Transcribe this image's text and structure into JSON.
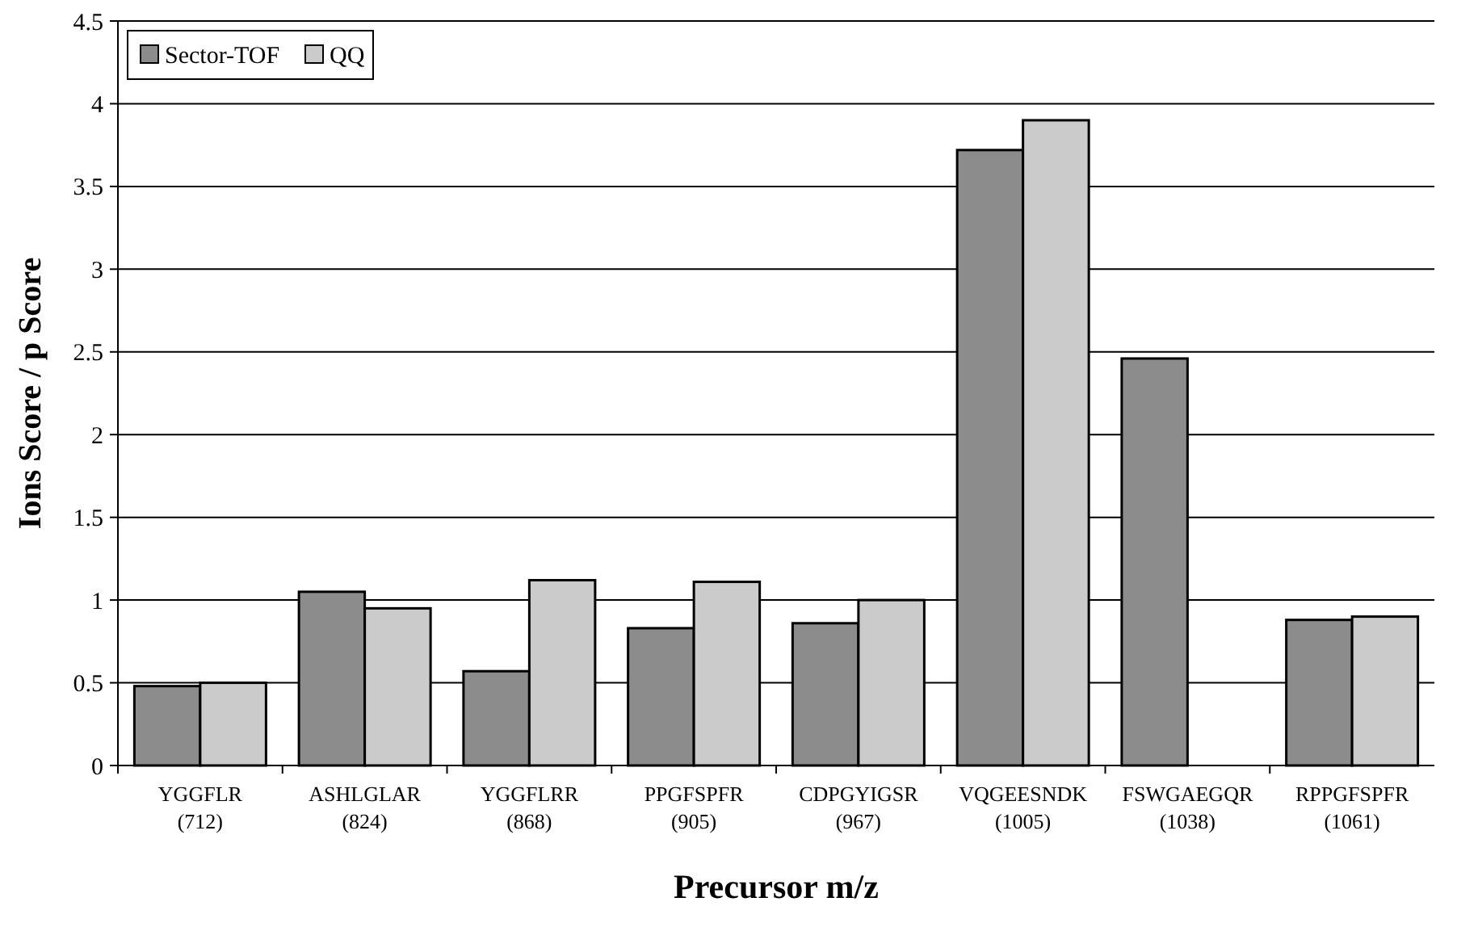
{
  "chart_data": {
    "type": "bar",
    "xlabel": "Precursor m/z",
    "ylabel": "Ions Score / p Score",
    "categories": [
      "YGGFLR\n(712)",
      "ASHLGLAR\n(824)",
      "YGGFLRR\n(868)",
      "PPGFSPFR\n(905)",
      "CDPGYIGSR\n(967)",
      "VQGEESNDK\n(1005)",
      "FSWGAEGQR\n(1038)",
      "RPPGFSPFR\n(1061)"
    ],
    "series": [
      {
        "name": "Sector-TOF",
        "color": "#8c8c8c",
        "values": [
          0.48,
          1.05,
          0.57,
          0.83,
          0.86,
          3.72,
          2.46,
          0.88
        ]
      },
      {
        "name": "QQ",
        "color": "#cbcbcb",
        "values": [
          0.5,
          0.95,
          1.12,
          1.11,
          1.0,
          3.9,
          null,
          0.9
        ]
      }
    ],
    "ylim": [
      0,
      4.5
    ],
    "yticks": [
      0,
      0.5,
      1,
      1.5,
      2,
      2.5,
      3,
      3.5,
      4,
      4.5
    ],
    "grid": "y",
    "legend": "top left"
  }
}
